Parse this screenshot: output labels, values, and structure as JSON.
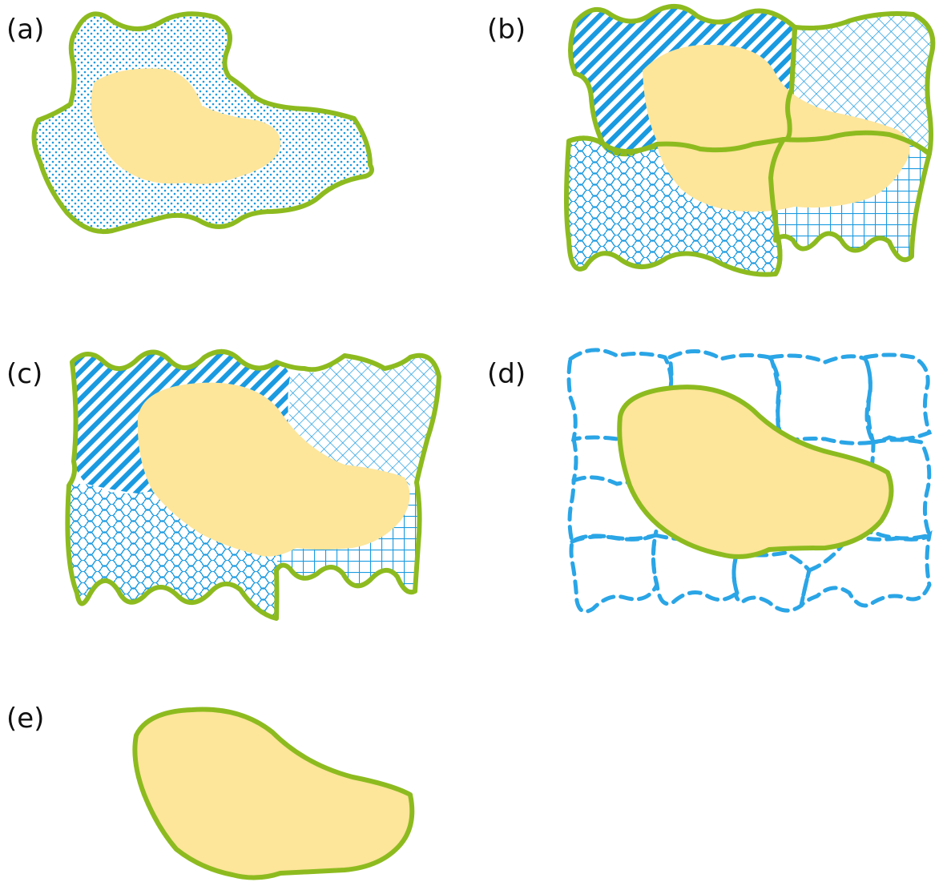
{
  "labels": {
    "a": "(a)",
    "b": "(b)",
    "c": "(c)",
    "d": "(d)",
    "e": "(e)"
  },
  "colors": {
    "outline": "#8dbb1f",
    "region_fill": "#fde59a",
    "pattern": "#1a9ae0",
    "dashed": "#2aa5e6"
  }
}
